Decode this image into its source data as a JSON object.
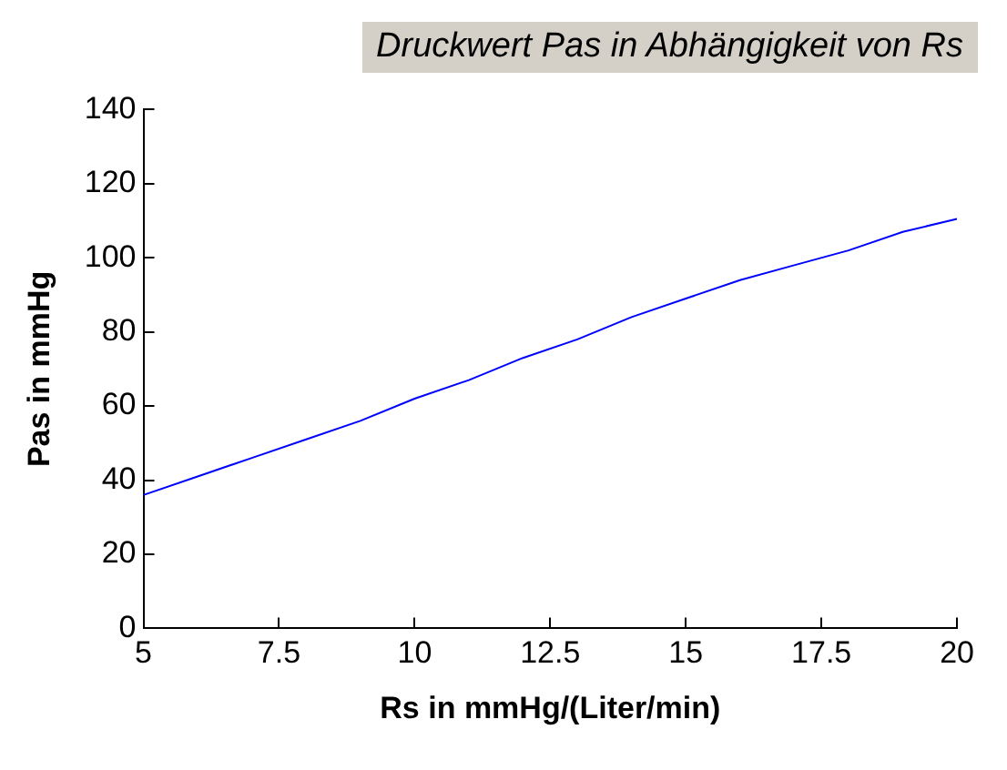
{
  "chart_data": {
    "type": "line",
    "title": "Druckwert Pas in Abhängigkeit von Rs",
    "xlabel": "Rs in mmHg/(Liter/min)",
    "ylabel": "Pas in mmHg",
    "x": [
      5,
      6,
      7,
      8,
      9,
      10,
      11,
      12,
      13,
      14,
      15,
      16,
      17,
      18,
      19,
      20
    ],
    "series": [
      {
        "color": "#0000ff",
        "values": [
          36,
          41,
          46,
          51,
          56,
          62,
          67,
          73,
          78,
          84,
          89,
          94,
          98,
          102,
          107,
          110.5
        ]
      }
    ],
    "xlim": [
      5,
      20
    ],
    "xticks": [
      5,
      7.5,
      10,
      12.5,
      15,
      17.5,
      20
    ],
    "ylim": [
      0,
      140
    ],
    "yticks": [
      0,
      20,
      40,
      60,
      80,
      100,
      120,
      140
    ],
    "grid": false,
    "legend": false,
    "marker": "none",
    "line_style": "solid"
  }
}
